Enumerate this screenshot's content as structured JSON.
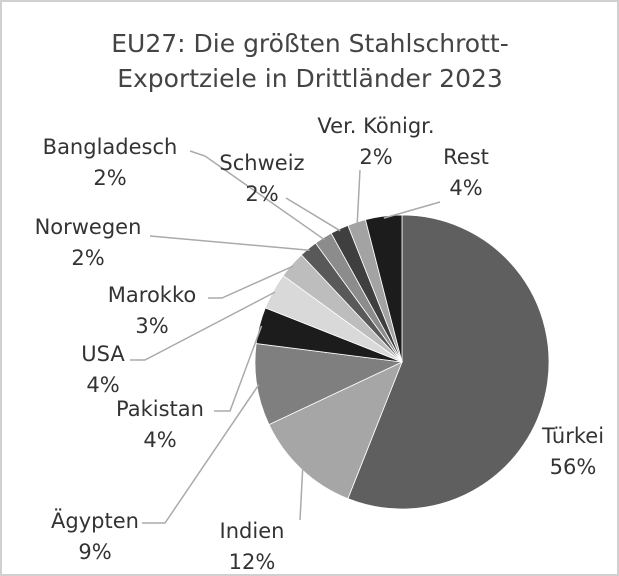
{
  "chart_data": {
    "type": "pie",
    "title": [
      "EU27: Die größten Stahlschrott-",
      "Exportziele in Drittländer 2023"
    ],
    "categories": [
      "Türkei",
      "Indien",
      "Ägypten",
      "Pakistan",
      "USA",
      "Marokko",
      "Norwegen",
      "Bangladesch",
      "Schweiz",
      "Ver. Königr.",
      "Rest"
    ],
    "values": [
      56,
      12,
      9,
      4,
      4,
      3,
      2,
      2,
      2,
      2,
      4
    ],
    "value_labels": [
      "56%",
      "12%",
      "9%",
      "4%",
      "4%",
      "3%",
      "2%",
      "2%",
      "2%",
      "2%",
      "4%"
    ],
    "colors": [
      "#5f5f5f",
      "#a6a6a6",
      "#7f7f7f",
      "#1c1c1c",
      "#d9d9d9",
      "#bdbdbd",
      "#595959",
      "#8c8c8c",
      "#3f3f3f",
      "#a3a3a3",
      "#1c1c1c"
    ]
  }
}
